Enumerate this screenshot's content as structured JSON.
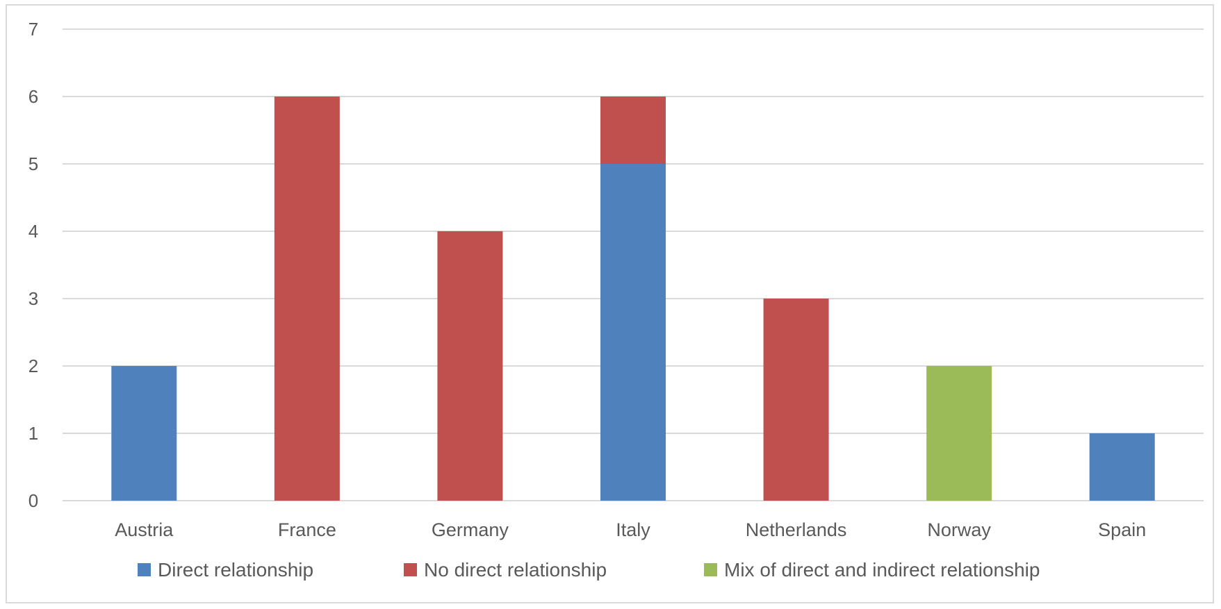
{
  "chart_data": {
    "type": "bar",
    "stacked": true,
    "categories": [
      "Austria",
      "France",
      "Germany",
      "Italy",
      "Netherlands",
      "Norway",
      "Spain"
    ],
    "series": [
      {
        "name": "Direct relationship",
        "color": "#4f81bd",
        "values": [
          2,
          0,
          0,
          5,
          0,
          0,
          1
        ]
      },
      {
        "name": "No direct relationship",
        "color": "#c0504d",
        "values": [
          0,
          6,
          4,
          1,
          3,
          0,
          0
        ]
      },
      {
        "name": "Mix of direct and indirect relationship",
        "color": "#9bbb59",
        "values": [
          0,
          0,
          0,
          0,
          0,
          2,
          0
        ]
      }
    ],
    "yticks": [
      "0",
      "1",
      "2",
      "3",
      "4",
      "5",
      "6",
      "7"
    ],
    "ylim": [
      0,
      7
    ],
    "grid": true,
    "legend": "bottom"
  }
}
